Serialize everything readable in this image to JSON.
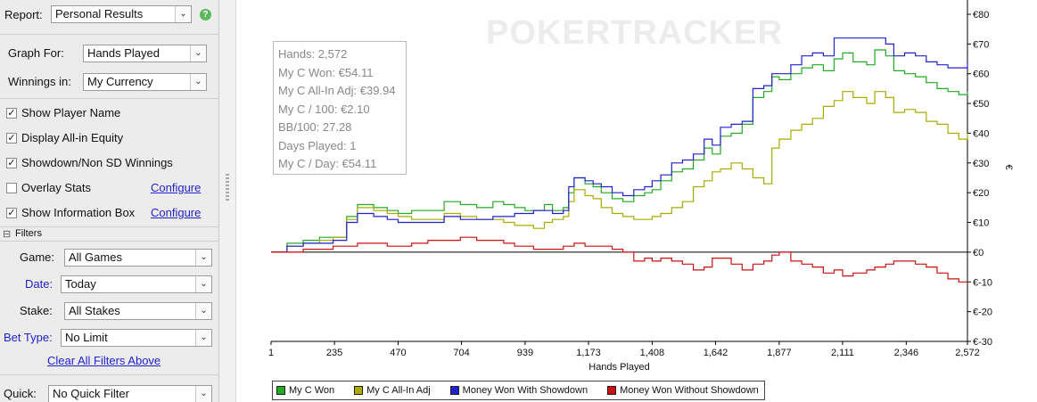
{
  "panel": {
    "report_label": "Report:",
    "report_value": "Personal Results",
    "graph_for_label": "Graph For:",
    "graph_for_value": "Hands Played",
    "winnings_in_label": "Winnings in:",
    "winnings_in_value": "My Currency",
    "checks": [
      {
        "label": "Show Player Name",
        "checked": true
      },
      {
        "label": "Display All-in Equity",
        "checked": true
      },
      {
        "label": "Showdown/Non SD Winnings",
        "checked": true
      },
      {
        "label": "Overlay Stats",
        "checked": false
      },
      {
        "label": "Show Information Box",
        "checked": true
      }
    ],
    "configure_label": "Configure",
    "filters_header": "Filters",
    "game_label": "Game:",
    "game_value": "All Games",
    "date_label": "Date:",
    "date_value": "Today",
    "stake_label": "Stake:",
    "stake_value": "All Stakes",
    "bet_type_label": "Bet Type:",
    "bet_type_value": "No Limit",
    "clear_filters": "Clear All Filters Above",
    "quick_label": "Quick:",
    "quick_value": "No Quick Filter",
    "help_glyph": "?",
    "collapse_glyph": "⊟",
    "check_glyph": "✓",
    "dropdown_glyph": "⌄"
  },
  "watermark": "POKERTRACKER",
  "info_box": [
    "Hands: 2,572",
    "My C Won: €54.11",
    "My C All-In Adj: €39.94",
    "My C / 100: €2.10",
    "BB/100: 27.28",
    "Days Played: 1",
    "My C / Day: €54.11"
  ],
  "chart_data": {
    "type": "line",
    "title": "",
    "xlabel": "Hands Played",
    "ylabel": "€",
    "xlim": [
      1,
      2572
    ],
    "ylim": [
      -30,
      80
    ],
    "x_ticks": [
      1,
      235,
      470,
      704,
      939,
      1173,
      1408,
      1642,
      1877,
      2111,
      2346,
      2572
    ],
    "x_tick_labels": [
      "1",
      "235",
      "470",
      "704",
      "939",
      "1,173",
      "1,408",
      "1,642",
      "1,877",
      "2,111",
      "2,346",
      "2,572"
    ],
    "y_ticks": [
      80,
      70,
      60,
      50,
      40,
      30,
      20,
      10,
      0,
      -10,
      -20,
      -30
    ],
    "y_tick_labels": [
      "€80",
      "€70",
      "€60",
      "€50",
      "€40",
      "€30",
      "€20",
      "€10",
      "€0",
      "€-10",
      "€-20",
      "€-30"
    ],
    "grid": false,
    "zero_line": true,
    "legend": "bottom-left",
    "series": [
      {
        "name": "My C Won",
        "color": "#22aa22",
        "points": [
          [
            1,
            0
          ],
          [
            60,
            3
          ],
          [
            120,
            4
          ],
          [
            180,
            5
          ],
          [
            230,
            5
          ],
          [
            280,
            12
          ],
          [
            320,
            16
          ],
          [
            380,
            15
          ],
          [
            430,
            14
          ],
          [
            470,
            13
          ],
          [
            520,
            14
          ],
          [
            580,
            14
          ],
          [
            640,
            17
          ],
          [
            700,
            16
          ],
          [
            760,
            15
          ],
          [
            820,
            17
          ],
          [
            860,
            16
          ],
          [
            900,
            15
          ],
          [
            939,
            14
          ],
          [
            970,
            14
          ],
          [
            1010,
            16
          ],
          [
            1040,
            14
          ],
          [
            1080,
            15
          ],
          [
            1100,
            20
          ],
          [
            1120,
            25
          ],
          [
            1160,
            23
          ],
          [
            1190,
            22
          ],
          [
            1220,
            20
          ],
          [
            1260,
            18
          ],
          [
            1300,
            17
          ],
          [
            1340,
            19
          ],
          [
            1380,
            20
          ],
          [
            1408,
            21
          ],
          [
            1440,
            24
          ],
          [
            1480,
            27
          ],
          [
            1520,
            28
          ],
          [
            1560,
            31
          ],
          [
            1600,
            35
          ],
          [
            1630,
            33
          ],
          [
            1660,
            39
          ],
          [
            1700,
            40
          ],
          [
            1740,
            43
          ],
          [
            1780,
            52
          ],
          [
            1820,
            54
          ],
          [
            1850,
            59
          ],
          [
            1877,
            58
          ],
          [
            1920,
            60
          ],
          [
            1960,
            62
          ],
          [
            2000,
            63
          ],
          [
            2040,
            61
          ],
          [
            2080,
            65
          ],
          [
            2111,
            67
          ],
          [
            2150,
            64
          ],
          [
            2200,
            63
          ],
          [
            2230,
            68
          ],
          [
            2270,
            66
          ],
          [
            2300,
            61
          ],
          [
            2340,
            60
          ],
          [
            2380,
            59
          ],
          [
            2420,
            57
          ],
          [
            2460,
            55
          ],
          [
            2500,
            54
          ],
          [
            2540,
            53
          ],
          [
            2572,
            54
          ]
        ]
      },
      {
        "name": "My C All-In Adj",
        "color": "#aaaa00",
        "points": [
          [
            1,
            0
          ],
          [
            60,
            2
          ],
          [
            120,
            3
          ],
          [
            180,
            4
          ],
          [
            230,
            5
          ],
          [
            280,
            11
          ],
          [
            320,
            15
          ],
          [
            380,
            14
          ],
          [
            430,
            13
          ],
          [
            470,
            12
          ],
          [
            520,
            11
          ],
          [
            580,
            11
          ],
          [
            640,
            13
          ],
          [
            700,
            12
          ],
          [
            760,
            11
          ],
          [
            820,
            11
          ],
          [
            860,
            10
          ],
          [
            900,
            9
          ],
          [
            939,
            9
          ],
          [
            970,
            8
          ],
          [
            1010,
            10
          ],
          [
            1040,
            11
          ],
          [
            1080,
            12
          ],
          [
            1100,
            17
          ],
          [
            1120,
            21
          ],
          [
            1160,
            19
          ],
          [
            1190,
            18
          ],
          [
            1220,
            15
          ],
          [
            1260,
            13
          ],
          [
            1300,
            12
          ],
          [
            1340,
            11
          ],
          [
            1380,
            11
          ],
          [
            1408,
            12
          ],
          [
            1440,
            13
          ],
          [
            1480,
            15
          ],
          [
            1520,
            17
          ],
          [
            1560,
            22
          ],
          [
            1600,
            24
          ],
          [
            1630,
            27
          ],
          [
            1660,
            28
          ],
          [
            1700,
            30
          ],
          [
            1740,
            28
          ],
          [
            1780,
            25
          ],
          [
            1820,
            23
          ],
          [
            1850,
            35
          ],
          [
            1877,
            38
          ],
          [
            1920,
            41
          ],
          [
            1960,
            43
          ],
          [
            2000,
            45
          ],
          [
            2040,
            49
          ],
          [
            2080,
            51
          ],
          [
            2111,
            54
          ],
          [
            2150,
            52
          ],
          [
            2200,
            50
          ],
          [
            2230,
            54
          ],
          [
            2270,
            52
          ],
          [
            2300,
            47
          ],
          [
            2340,
            48
          ],
          [
            2380,
            47
          ],
          [
            2420,
            44
          ],
          [
            2460,
            43
          ],
          [
            2500,
            40
          ],
          [
            2540,
            38
          ],
          [
            2572,
            40
          ]
        ]
      },
      {
        "name": "Money Won With Showdown",
        "color": "#2222cc",
        "points": [
          [
            1,
            0
          ],
          [
            60,
            2
          ],
          [
            120,
            3
          ],
          [
            180,
            3
          ],
          [
            230,
            4
          ],
          [
            280,
            10
          ],
          [
            320,
            13
          ],
          [
            380,
            12
          ],
          [
            430,
            11
          ],
          [
            470,
            10
          ],
          [
            520,
            10
          ],
          [
            580,
            10
          ],
          [
            640,
            12
          ],
          [
            700,
            11
          ],
          [
            760,
            11
          ],
          [
            820,
            12
          ],
          [
            860,
            12
          ],
          [
            900,
            13
          ],
          [
            939,
            13
          ],
          [
            970,
            14
          ],
          [
            1010,
            14
          ],
          [
            1040,
            13
          ],
          [
            1080,
            14
          ],
          [
            1100,
            22
          ],
          [
            1120,
            25
          ],
          [
            1160,
            24
          ],
          [
            1190,
            23
          ],
          [
            1220,
            22
          ],
          [
            1260,
            20
          ],
          [
            1300,
            19
          ],
          [
            1340,
            21
          ],
          [
            1380,
            22
          ],
          [
            1408,
            24
          ],
          [
            1440,
            26
          ],
          [
            1480,
            30
          ],
          [
            1520,
            31
          ],
          [
            1560,
            33
          ],
          [
            1600,
            38
          ],
          [
            1630,
            36
          ],
          [
            1660,
            42
          ],
          [
            1700,
            43
          ],
          [
            1740,
            44
          ],
          [
            1780,
            55
          ],
          [
            1820,
            56
          ],
          [
            1850,
            60
          ],
          [
            1877,
            60
          ],
          [
            1920,
            63
          ],
          [
            1960,
            66
          ],
          [
            2000,
            67
          ],
          [
            2040,
            66
          ],
          [
            2080,
            72
          ],
          [
            2111,
            72
          ],
          [
            2150,
            72
          ],
          [
            2200,
            72
          ],
          [
            2230,
            72
          ],
          [
            2270,
            70
          ],
          [
            2300,
            66
          ],
          [
            2340,
            67
          ],
          [
            2380,
            66
          ],
          [
            2420,
            64
          ],
          [
            2460,
            63
          ],
          [
            2500,
            62
          ],
          [
            2540,
            62
          ],
          [
            2572,
            64
          ]
        ]
      },
      {
        "name": "Money Won Without Showdown",
        "color": "#cc1111",
        "points": [
          [
            1,
            0
          ],
          [
            60,
            0
          ],
          [
            120,
            1
          ],
          [
            180,
            1
          ],
          [
            230,
            2
          ],
          [
            280,
            2
          ],
          [
            320,
            3
          ],
          [
            380,
            3
          ],
          [
            430,
            2
          ],
          [
            470,
            2
          ],
          [
            520,
            3
          ],
          [
            580,
            4
          ],
          [
            640,
            4
          ],
          [
            700,
            5
          ],
          [
            760,
            4
          ],
          [
            820,
            4
          ],
          [
            860,
            3
          ],
          [
            900,
            2
          ],
          [
            939,
            2
          ],
          [
            970,
            1
          ],
          [
            1010,
            1
          ],
          [
            1040,
            1
          ],
          [
            1080,
            2
          ],
          [
            1100,
            2
          ],
          [
            1120,
            3
          ],
          [
            1160,
            2
          ],
          [
            1190,
            2
          ],
          [
            1220,
            2
          ],
          [
            1260,
            1
          ],
          [
            1300,
            0
          ],
          [
            1340,
            -3
          ],
          [
            1380,
            -2
          ],
          [
            1408,
            -3
          ],
          [
            1440,
            -2
          ],
          [
            1480,
            -3
          ],
          [
            1520,
            -4
          ],
          [
            1560,
            -6
          ],
          [
            1600,
            -5
          ],
          [
            1630,
            -2
          ],
          [
            1660,
            -2
          ],
          [
            1700,
            -4
          ],
          [
            1740,
            -6
          ],
          [
            1780,
            -4
          ],
          [
            1820,
            -3
          ],
          [
            1850,
            -1
          ],
          [
            1877,
            0
          ],
          [
            1920,
            -3
          ],
          [
            1960,
            -4
          ],
          [
            2000,
            -5
          ],
          [
            2040,
            -7
          ],
          [
            2080,
            -6
          ],
          [
            2111,
            -8
          ],
          [
            2150,
            -7
          ],
          [
            2200,
            -6
          ],
          [
            2230,
            -5
          ],
          [
            2270,
            -4
          ],
          [
            2300,
            -3
          ],
          [
            2340,
            -3
          ],
          [
            2380,
            -4
          ],
          [
            2420,
            -5
          ],
          [
            2460,
            -7
          ],
          [
            2500,
            -9
          ],
          [
            2540,
            -10
          ],
          [
            2572,
            -10
          ]
        ]
      }
    ]
  }
}
